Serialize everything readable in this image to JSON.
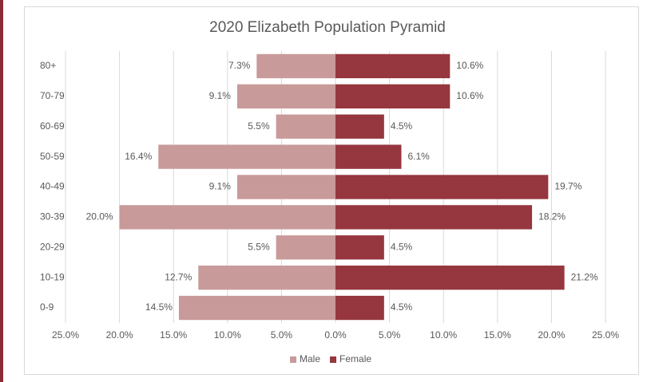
{
  "chart_data": {
    "type": "bar",
    "orientation": "horizontal",
    "stacked": true,
    "title": "2020 Elizabeth Population Pyramid",
    "categories": [
      "80+",
      "70-79",
      "60-69",
      "50-59",
      "40-49",
      "30-39",
      "20-29",
      "10-19",
      "0-9"
    ],
    "series": [
      {
        "name": "Male",
        "color": "#c99a9a",
        "values": [
          -7.3,
          -9.1,
          -5.5,
          -16.4,
          -9.1,
          -20.0,
          -5.5,
          -12.7,
          -14.5
        ],
        "value_labels": [
          "7.3%",
          "9.1%",
          "5.5%",
          "16.4%",
          "9.1%",
          "20.0%",
          "5.5%",
          "12.7%",
          "14.5%"
        ]
      },
      {
        "name": "Female",
        "color": "#96363f",
        "values": [
          10.6,
          10.6,
          4.5,
          6.1,
          19.7,
          18.2,
          4.5,
          21.2,
          4.5
        ],
        "value_labels": [
          "10.6%",
          "10.6%",
          "4.5%",
          "6.1%",
          "19.7%",
          "18.2%",
          "4.5%",
          "21.2%",
          "4.5%"
        ]
      }
    ],
    "xlim": [
      -25,
      25
    ],
    "xticks": [
      {
        "value": -25,
        "label": "25.0%"
      },
      {
        "value": -20,
        "label": "20.0%"
      },
      {
        "value": -15,
        "label": "15.0%"
      },
      {
        "value": -10,
        "label": "10.0%"
      },
      {
        "value": -5,
        "label": "5.0%"
      },
      {
        "value": 0,
        "label": "0.0%"
      },
      {
        "value": 5,
        "label": "5.0%"
      },
      {
        "value": 10,
        "label": "10.0%"
      },
      {
        "value": 15,
        "label": "15.0%"
      },
      {
        "value": 20,
        "label": "20.0%"
      },
      {
        "value": 25,
        "label": "25.0%"
      }
    ],
    "grid": true,
    "legend": "bottom"
  }
}
